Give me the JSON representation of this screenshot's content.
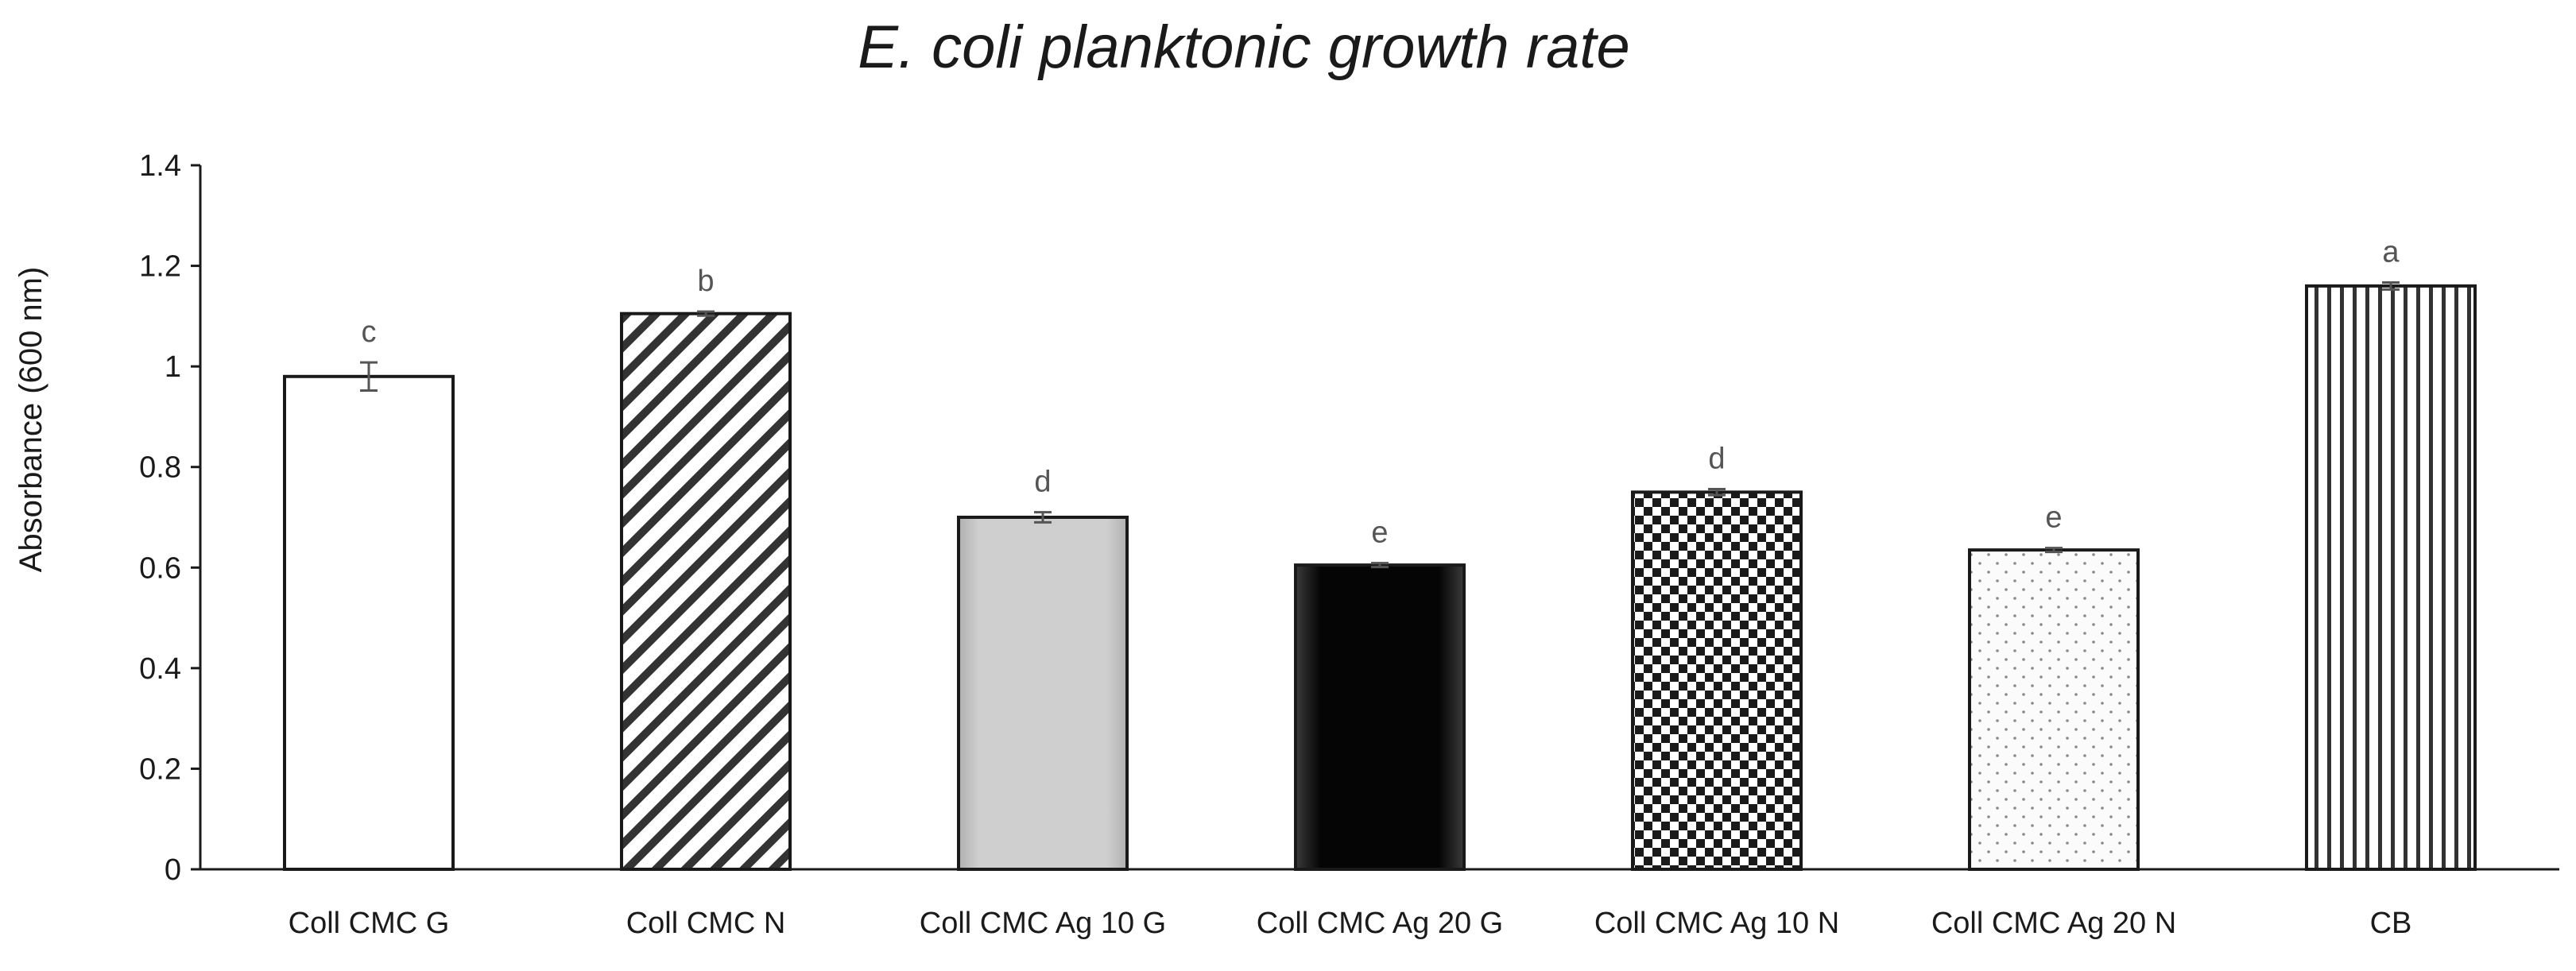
{
  "chart_data": {
    "type": "bar",
    "title": "E. coli planktonic growth rate",
    "xlabel": "",
    "ylabel": "Absorbance (600 nm)",
    "ylim": [
      0,
      1.4
    ],
    "yticks": [
      0,
      0.2,
      0.4,
      0.6,
      0.8,
      1,
      1.2,
      1.4
    ],
    "ytick_labels": [
      "0",
      "0.2",
      "0.4",
      "0.6",
      "0.8",
      "1",
      "1.2",
      "1.4"
    ],
    "grid": false,
    "categories": [
      "Coll CMC G",
      "Coll CMC N",
      "Coll CMC Ag 10 G",
      "Coll CMC Ag 20 G",
      "Coll CMC Ag 10 N",
      "Coll CMC Ag 20 N",
      "CB"
    ],
    "values": [
      0.98,
      1.105,
      0.7,
      0.605,
      0.75,
      0.635,
      1.16
    ],
    "errors": [
      0.028,
      0.004,
      0.01,
      0.004,
      0.006,
      0.004,
      0.007
    ],
    "letters": [
      "c",
      "b",
      "d",
      "e",
      "d",
      "e",
      "a"
    ],
    "patterns": [
      "white",
      "diagonal-stripes",
      "light-gray",
      "black",
      "checkerboard",
      "dots",
      "vertical-stripes"
    ]
  }
}
